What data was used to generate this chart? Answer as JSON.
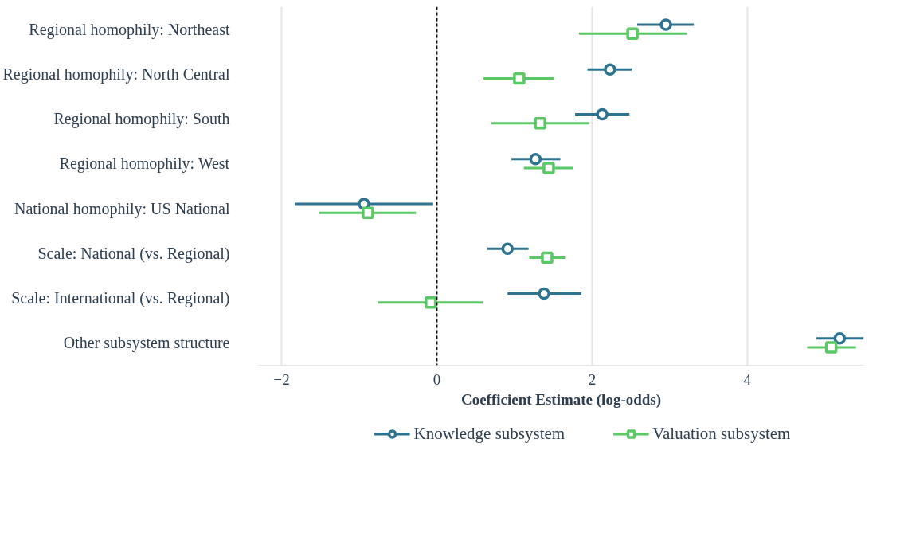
{
  "chart_data": {
    "type": "scatter",
    "orientation": "horizontal",
    "xlabel": "Coefficient Estimate (log-odds)",
    "categories": [
      "Regional homophily: Northeast",
      "Regional homophily: North Central",
      "Regional homophily: South",
      "Regional homophily: West",
      "National homophily: US National",
      "Scale: National (vs. Regional)",
      "Scale: International (vs. Regional)",
      "Other subsystem structure"
    ],
    "series": [
      {
        "name": "Knowledge subsystem",
        "color": "#2c7391",
        "marker": "circle",
        "values": [
          2.95,
          2.23,
          2.13,
          1.27,
          -0.94,
          0.91,
          1.38,
          5.19
        ],
        "errors": [
          [
            2.58,
            3.31
          ],
          [
            1.94,
            2.51
          ],
          [
            1.78,
            2.48
          ],
          [
            0.96,
            1.59
          ],
          [
            -1.83,
            -0.05
          ],
          [
            0.65,
            1.18
          ],
          [
            0.91,
            1.86
          ],
          [
            4.89,
            5.5
          ]
        ]
      },
      {
        "name": "Valuation subsystem",
        "color": "#5ac864",
        "marker": "square",
        "values": [
          2.52,
          1.06,
          1.33,
          1.44,
          -0.89,
          1.42,
          -0.08,
          5.08
        ],
        "errors": [
          [
            1.83,
            3.22
          ],
          [
            0.6,
            1.51
          ],
          [
            0.7,
            1.96
          ],
          [
            1.12,
            1.76
          ],
          [
            -1.52,
            -0.27
          ],
          [
            1.19,
            1.66
          ],
          [
            -0.76,
            0.59
          ],
          [
            4.77,
            5.4
          ]
        ]
      }
    ],
    "xlim": [
      -2.3,
      5.5
    ],
    "xticks": [
      -2,
      0,
      2,
      4
    ],
    "grid": "x",
    "legend": "bottom",
    "ref_lines": [
      {
        "axis": "x",
        "value": 0,
        "color": "#000000",
        "line_style": "dashed"
      }
    ]
  }
}
